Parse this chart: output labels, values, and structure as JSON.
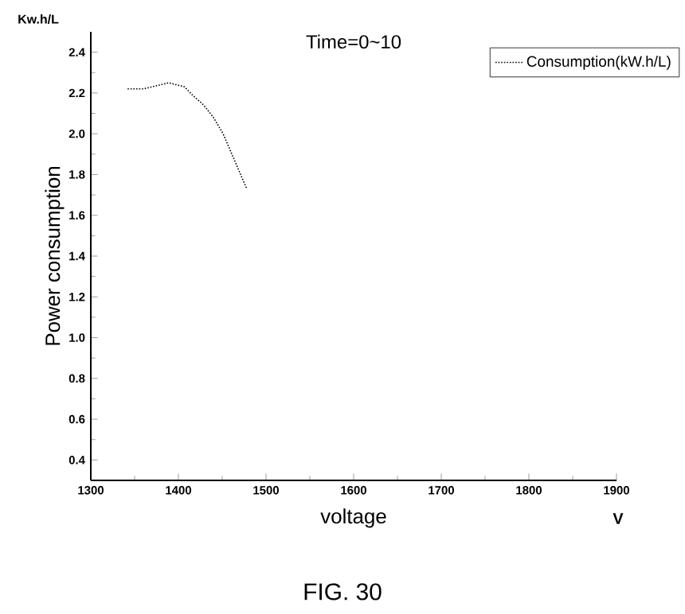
{
  "chart_data": {
    "type": "line",
    "title": "Time=0~10",
    "xlabel": "voltage",
    "ylabel": "Power consumption",
    "annotations": [
      "Kw.h/L",
      "V",
      "FIG. 30"
    ],
    "x": [
      1342,
      1360,
      1389,
      1407,
      1416,
      1429,
      1440,
      1451,
      1462,
      1478
    ],
    "series": [
      {
        "name": "Consumption(kW.h/L)",
        "color": "#000000",
        "values": [
          2.22,
          2.22,
          2.25,
          2.23,
          2.19,
          2.14,
          2.08,
          2.0,
          1.89,
          1.73
        ]
      }
    ],
    "xlim": [
      1300,
      1900
    ],
    "ylim": [
      0.3,
      2.5
    ],
    "xticks": [
      1300,
      1400,
      1500,
      1600,
      1700,
      1800,
      1900
    ],
    "yticks": [
      0.4,
      0.6,
      0.8,
      {
        "value": 1,
        "label": "1.0"
      },
      1.2,
      1.4,
      1.6,
      1.8,
      {
        "value": 2,
        "label": "2.0"
      },
      2.2,
      2.4
    ],
    "grid": false,
    "legend": "top right",
    "line_style": "dotted",
    "marker": "none"
  }
}
